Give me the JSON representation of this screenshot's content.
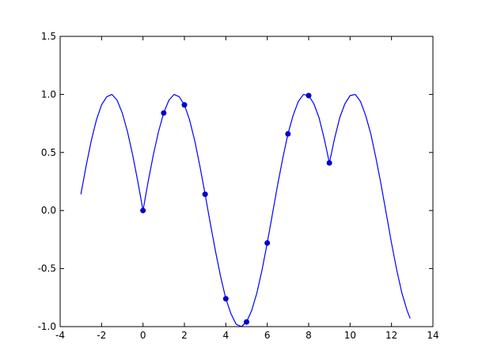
{
  "chart_data": {
    "type": "line",
    "title": "",
    "xlabel": "",
    "ylabel": "",
    "xlim": [
      -4,
      14
    ],
    "ylim": [
      -1.0,
      1.5
    ],
    "grid": false,
    "xticks": [
      -4,
      -2,
      0,
      2,
      4,
      6,
      8,
      10,
      12,
      14
    ],
    "xtick_labels": [
      "-4",
      "-2",
      "0",
      "2",
      "4",
      "6",
      "8",
      "10",
      "12",
      "14"
    ],
    "yticks": [
      -1.0,
      -0.5,
      0.0,
      0.5,
      1.0,
      1.5
    ],
    "ytick_labels": [
      "-1.0",
      "-0.5",
      "0.0",
      "0.5",
      "1.0",
      "1.5"
    ],
    "series": [
      {
        "kind": "line",
        "color": "#0000ff",
        "x": [
          -3.0,
          -2.75,
          -2.5,
          -2.25,
          -2.0,
          -1.75,
          -1.5,
          -1.25,
          -1.0,
          -0.75,
          -0.5,
          -0.25,
          0.0,
          0.25,
          0.5,
          0.75,
          1.0,
          1.25,
          1.5,
          1.75,
          2.0,
          2.25,
          2.5,
          2.75,
          3.0,
          3.25,
          3.5,
          3.75,
          4.0,
          4.25,
          4.5,
          4.75,
          5.0,
          5.25,
          5.5,
          5.75,
          6.0,
          6.25,
          6.5,
          6.75,
          7.0,
          7.25,
          7.5,
          7.75,
          8.0,
          8.25,
          8.5,
          8.75,
          9.0,
          9.25,
          9.5,
          9.75,
          10.0,
          10.25,
          10.5,
          10.75,
          11.0,
          11.25,
          11.5,
          11.75,
          12.0,
          12.25,
          12.5,
          12.75,
          12.9
        ],
        "y": [
          0.14,
          0.38,
          0.6,
          0.78,
          0.91,
          0.98,
          1.0,
          0.95,
          0.84,
          0.68,
          0.48,
          0.25,
          0.0,
          0.25,
          0.48,
          0.68,
          0.84,
          0.95,
          1.0,
          0.98,
          0.91,
          0.78,
          0.6,
          0.38,
          0.14,
          -0.11,
          -0.35,
          -0.57,
          -0.76,
          -0.89,
          -0.98,
          -1.0,
          -0.96,
          -0.86,
          -0.71,
          -0.51,
          -0.28,
          -0.03,
          0.22,
          0.45,
          0.66,
          0.82,
          0.94,
          1.0,
          0.99,
          0.92,
          0.8,
          0.62,
          0.41,
          0.62,
          0.8,
          0.92,
          0.99,
          1.0,
          0.94,
          0.82,
          0.66,
          0.45,
          0.22,
          -0.03,
          -0.28,
          -0.51,
          -0.71,
          -0.86,
          -0.93
        ]
      },
      {
        "kind": "scatter",
        "color": "#0000cc",
        "x": [
          0,
          1,
          2,
          3,
          4,
          5,
          6,
          7,
          8,
          9
        ],
        "y": [
          0.0,
          0.84,
          0.91,
          0.14,
          -0.76,
          -0.96,
          -0.28,
          0.66,
          0.99,
          0.41
        ]
      }
    ]
  }
}
